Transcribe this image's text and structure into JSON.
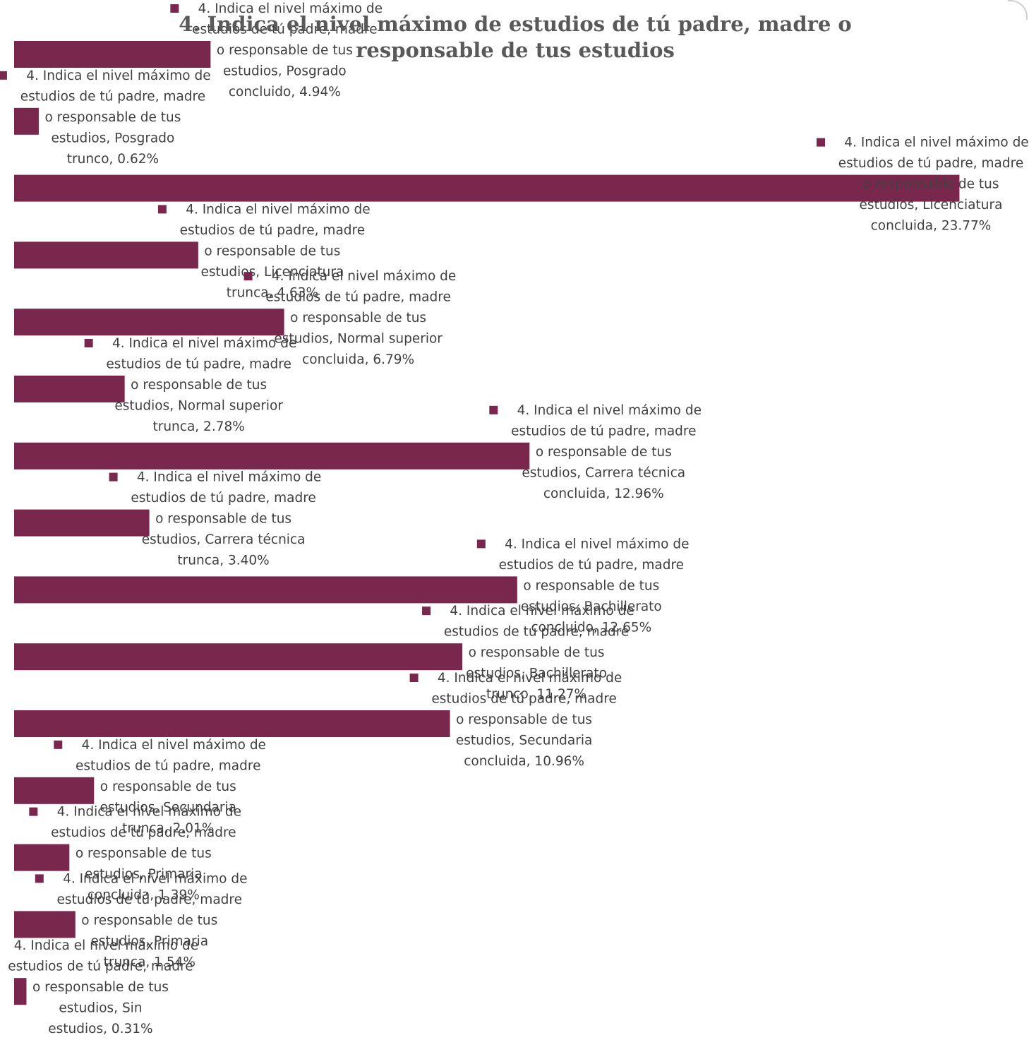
{
  "chart_data": {
    "type": "bar",
    "orientation": "horizontal",
    "title": "4. Indica el nivel máximo de estudios de tú padre, madre o responsable de tus estudios",
    "series_name": "4. Indica el nivel máximo de estudios de tú padre, madre o responsable de tus estudios",
    "categories": [
      "Posgrado concluido",
      "Posgrado trunco",
      "Licenciatura concluida",
      "Licenciatura trunca",
      "Normal superior concluida",
      "Normal superior trunca",
      "Carrera técnica concluida",
      "Carrera técnica trunca",
      "Bachillerato concluido",
      "Bachillerato trunco",
      "Secundaria concluida",
      "Secundaria trunca",
      "Primaria concluida",
      "Primaria trunca",
      "Sin estudios"
    ],
    "values": [
      4.94,
      0.62,
      23.77,
      4.63,
      6.79,
      2.78,
      12.96,
      3.4,
      12.65,
      11.27,
      10.96,
      2.01,
      1.39,
      1.54,
      0.31
    ],
    "value_labels": [
      "4.94%",
      "0.62%",
      "23.77%",
      "4.63%",
      "6.79%",
      "2.78%",
      "12.96%",
      "3.40%",
      "12.65%",
      "11.27%",
      "10.96%",
      "2.01%",
      "1.39%",
      "1.54%",
      "0.31%"
    ],
    "data_label_lines": [
      [
        "4. Indica el nivel máximo de",
        "estudios de tú padre, madre",
        "o responsable de tus",
        "estudios, Posgrado",
        "concluido, 4.94%"
      ],
      [
        "4. Indica el nivel máximo de",
        "estudios de tú padre, madre",
        "o responsable de tus",
        "estudios, Posgrado",
        "trunco, 0.62%"
      ],
      [
        "4. Indica el nivel máximo de",
        "estudios de tú padre, madre",
        "o responsable de tus",
        "estudios, Licenciatura",
        "concluida, 23.77%"
      ],
      [
        "4. Indica el nivel máximo de",
        "estudios de tú padre, madre",
        "o responsable de tus",
        "estudios, Licenciatura",
        "trunca, 4.63%"
      ],
      [
        "4. Indica el nivel máximo de",
        "estudios de tú padre, madre",
        "o responsable de tus",
        "estudios, Normal superior",
        "concluida, 6.79%"
      ],
      [
        "4. Indica el nivel máximo de",
        "estudios de tú padre, madre",
        "o responsable de tus",
        "estudios, Normal superior",
        "trunca, 2.78%"
      ],
      [
        "4. Indica el nivel máximo de",
        "estudios de tú padre, madre",
        "o responsable de tus",
        "estudios, Carrera técnica",
        "concluida, 12.96%"
      ],
      [
        "4. Indica el nivel máximo de",
        "estudios de tú padre, madre",
        "o responsable de tus",
        "estudios, Carrera técnica",
        "trunca, 3.40%"
      ],
      [
        "4. Indica el nivel máximo de",
        "estudios de tú padre, madre",
        "o responsable de tus",
        "estudios, Bachillerato",
        "concluido, 12.65%"
      ],
      [
        "4. Indica el nivel máximo de",
        "estudios de tú padre, madre",
        "o responsable de tus",
        "estudios, Bachillerato",
        "trunco, 11.27%"
      ],
      [
        "4. Indica el nivel máximo de",
        "estudios de tú padre, madre",
        "o responsable de tus",
        "estudios, Secundaria",
        "concluida, 10.96%"
      ],
      [
        "4. Indica el nivel máximo de",
        "estudios de tú padre, madre",
        "o responsable de tus",
        "estudios, Secundaria",
        "trunca, 2.01%"
      ],
      [
        "4. Indica el nivel máximo de",
        "estudios de tú padre, madre",
        "o responsable de tus",
        "estudios, Primaria",
        "concluida, 1.39%"
      ],
      [
        "4. Indica el nivel máximo de",
        "estudios de tú padre, madre",
        "o responsable de tus",
        "estudios, Primaria",
        "trunca, 1.54%"
      ],
      [
        "4. Indica el nivel máximo de",
        "estudios de tú padre, madre",
        "o responsable de tus",
        "estudios, Sin",
        "estudios, 0.31%"
      ]
    ],
    "axes_visible": false,
    "grid": false,
    "legend": "none",
    "bar_color": "#7a274e",
    "label_color": "#404040",
    "title_color": "#595959"
  }
}
